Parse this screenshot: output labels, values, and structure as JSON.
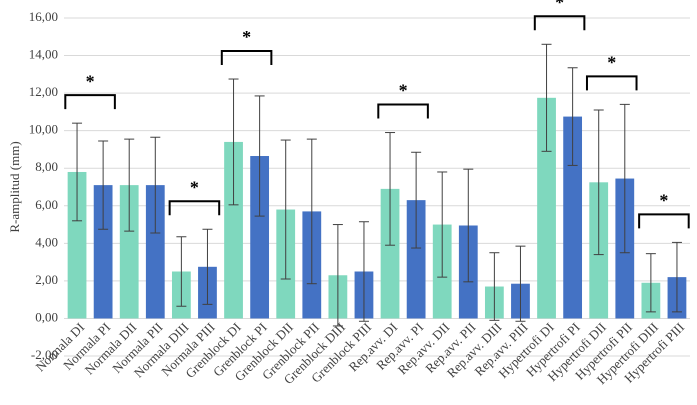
{
  "chart_data": {
    "type": "bar",
    "y_label": "R-amplitud (mm)",
    "categories": [
      "Normala DI",
      "Normala PI",
      "Normala DII",
      "Normala PII",
      "Normala DIII",
      "Normala PIII",
      "Grenblock DI",
      "Grenblock PI",
      "Grenblock DII",
      "Grenblock PII",
      "Grenblock DIII",
      "Grenblock PIII",
      "Rep.avv. DI",
      "Rep.avv. PI",
      "Rep.avv. DII",
      "Rep.avv. PII",
      "Rep.avv. DIII",
      "Rep.avv. PIII",
      "Hypertrofi DI",
      "Hypertrofi PI",
      "Hypertrofi DII",
      "Hypertrofi PII",
      "Hypertrofi DIII",
      "Hypertrofi PIII"
    ],
    "values": [
      7.8,
      7.1,
      7.1,
      7.1,
      2.5,
      2.75,
      9.4,
      8.65,
      5.8,
      5.7,
      2.3,
      2.5,
      6.9,
      6.3,
      5.0,
      4.95,
      1.7,
      1.85,
      11.75,
      10.75,
      7.25,
      7.45,
      1.9,
      2.2
    ],
    "errors": [
      2.6,
      2.35,
      2.45,
      2.55,
      1.85,
      2.0,
      3.35,
      3.2,
      3.7,
      3.85,
      2.7,
      2.65,
      3.0,
      2.55,
      2.8,
      3.0,
      1.8,
      2.0,
      2.85,
      2.6,
      3.85,
      3.95,
      1.55,
      1.85
    ],
    "colors": [
      "#7fd8be",
      "#4472c4"
    ],
    "ylim": [
      -2,
      16
    ],
    "yticks": [
      {
        "value": -2,
        "label": "-2,00"
      },
      {
        "value": 0,
        "label": "0,00"
      },
      {
        "value": 2,
        "label": "2,00"
      },
      {
        "value": 4,
        "label": "4,00"
      },
      {
        "value": 6,
        "label": "6,00"
      },
      {
        "value": 8,
        "label": "8,00"
      },
      {
        "value": 10,
        "label": "10,00"
      },
      {
        "value": 12,
        "label": "12,00"
      },
      {
        "value": 14,
        "label": "14,00"
      },
      {
        "value": 16,
        "label": "16,00"
      }
    ],
    "grid": true,
    "annotations": [
      {
        "text": "*",
        "categories": [
          0,
          1
        ]
      },
      {
        "text": "*",
        "categories": [
          4,
          5
        ]
      },
      {
        "text": "*",
        "categories": [
          6,
          7
        ]
      },
      {
        "text": "*",
        "categories": [
          12,
          13
        ]
      },
      {
        "text": "*",
        "categories": [
          18,
          19
        ]
      },
      {
        "text": "*",
        "categories": [
          20,
          21
        ]
      },
      {
        "text": "*",
        "categories": [
          22,
          23
        ]
      }
    ]
  }
}
